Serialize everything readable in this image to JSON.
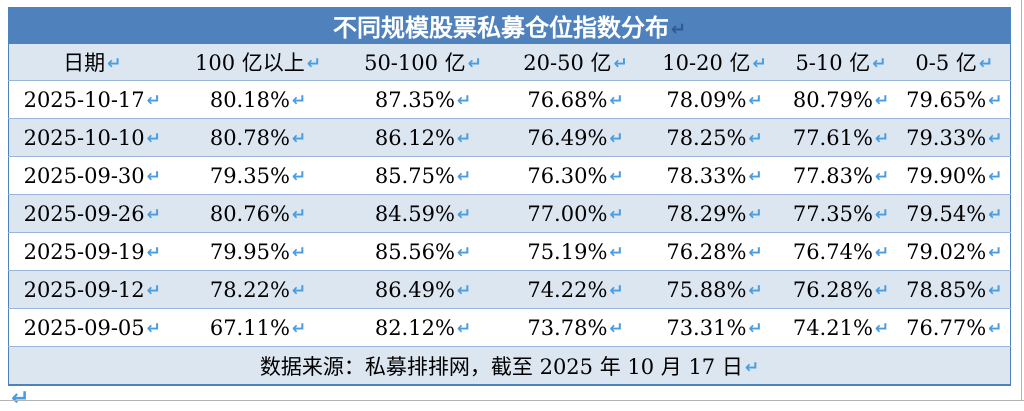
{
  "meta": {
    "return_mark": "↵"
  },
  "table": {
    "title": "不同规模股票私募仓位指数分布",
    "columns": [
      "日期",
      "100 亿以上",
      "50-100 亿",
      "20-50 亿",
      "10-20 亿",
      "5-10 亿",
      "0-5 亿"
    ],
    "rows": [
      [
        "2025-10-17",
        "80.18%",
        "87.35%",
        "76.68%",
        "78.09%",
        "80.79%",
        "79.65%"
      ],
      [
        "2025-10-10",
        "80.78%",
        "86.12%",
        "76.49%",
        "78.25%",
        "77.61%",
        "79.33%"
      ],
      [
        "2025-09-30",
        "79.35%",
        "85.75%",
        "76.30%",
        "78.33%",
        "77.83%",
        "79.90%"
      ],
      [
        "2025-09-26",
        "80.76%",
        "84.59%",
        "77.00%",
        "78.29%",
        "77.35%",
        "79.54%"
      ],
      [
        "2025-09-19",
        "79.95%",
        "85.56%",
        "75.19%",
        "76.28%",
        "76.74%",
        "79.02%"
      ],
      [
        "2025-09-12",
        "78.22%",
        "86.49%",
        "74.22%",
        "75.88%",
        "76.28%",
        "78.85%"
      ],
      [
        "2025-09-05",
        "67.11%",
        "82.12%",
        "73.78%",
        "73.31%",
        "74.21%",
        "76.77%"
      ]
    ],
    "footer": "数据来源：私募排排网，截至 2025 年 10 月 17 日"
  },
  "colors": {
    "title_bg": "#4F81BD",
    "alt_row_bg": "#DCE6F1",
    "outer_border": "#4F81BD",
    "inner_border": "#9AB5D9",
    "return_mark": "#4A9DE0",
    "title_return_mark": "#2E5B97",
    "page_edge": "#B3B3B3"
  }
}
